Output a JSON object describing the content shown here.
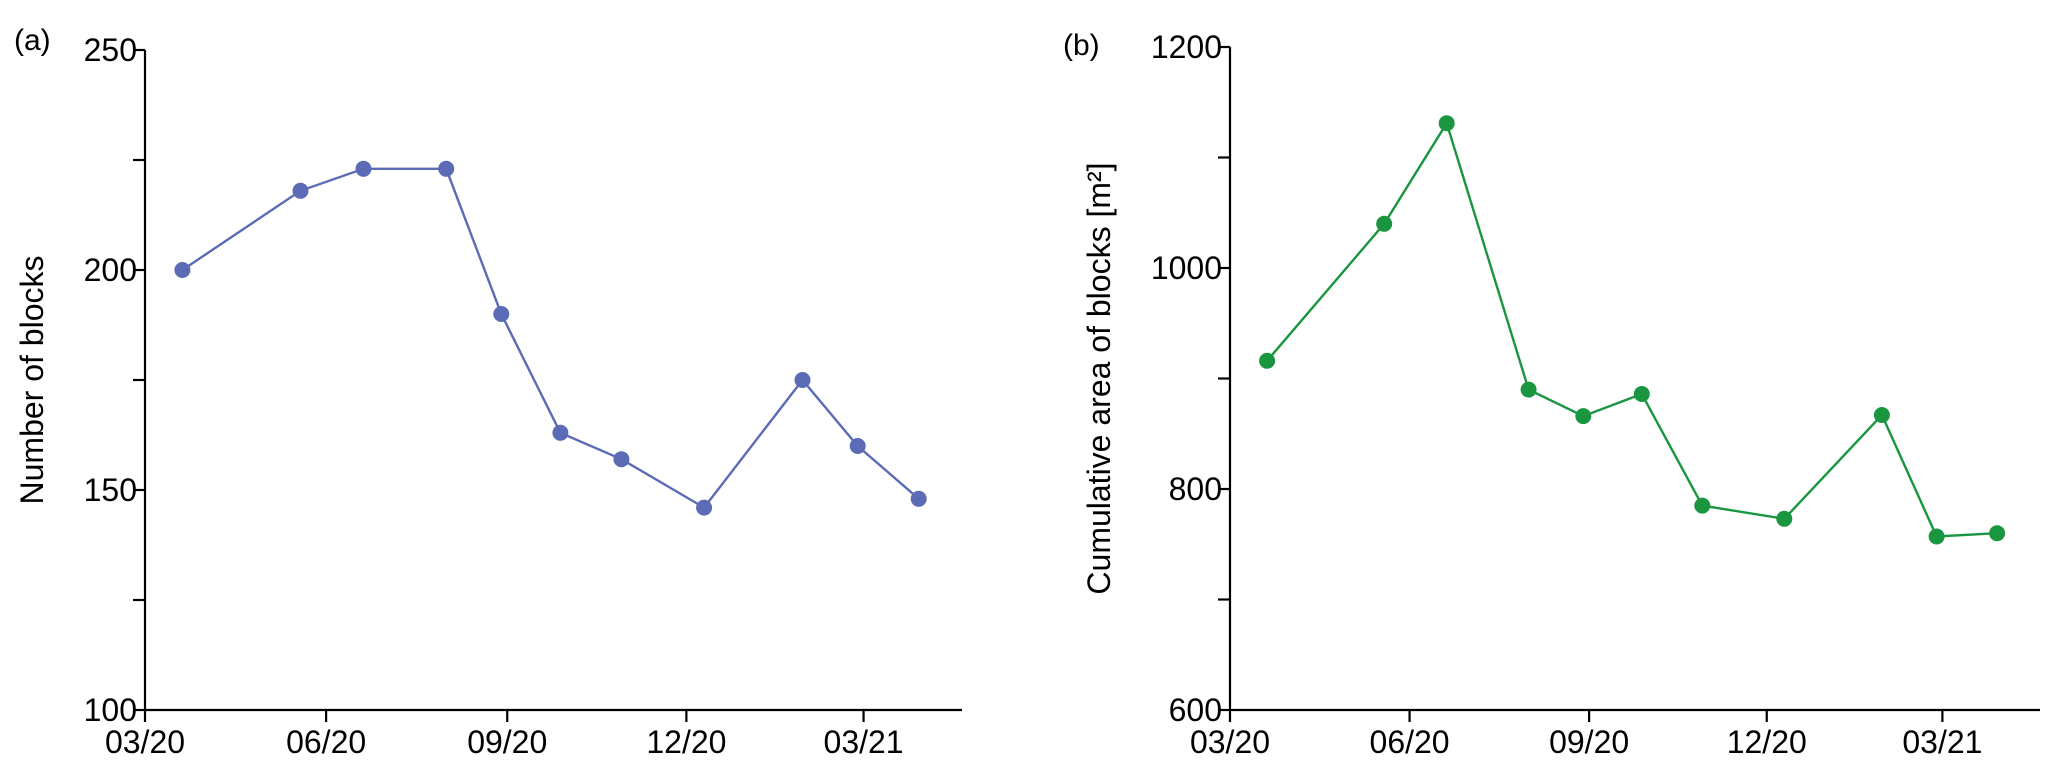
{
  "figure": {
    "panels": [
      {
        "label": "(a)"
      },
      {
        "label": "(b)"
      }
    ]
  },
  "chart_data": [
    {
      "type": "line",
      "panel": "(a)",
      "title": "",
      "xlabel": "",
      "ylabel": "Number of blocks",
      "xlim": [
        "2020-03-01",
        "2021-04-20"
      ],
      "ylim": [
        100,
        250
      ],
      "x_ticks": [
        "2020-03-01",
        "2020-06-01",
        "2020-09-01",
        "2020-12-01",
        "2021-03-01"
      ],
      "x_tick_labels": [
        "03/20",
        "06/20",
        "09/20",
        "12/20",
        "03/21"
      ],
      "y_ticks": [
        100,
        125,
        150,
        175,
        200,
        225,
        250
      ],
      "y_tick_labels": [
        "100",
        "",
        "150",
        "",
        "200",
        "",
        "250"
      ],
      "grid": false,
      "color": "#5b6bb5",
      "series": [
        {
          "x": [
            "2020-03-20",
            "2020-05-19",
            "2020-06-20",
            "2020-08-01",
            "2020-08-29",
            "2020-09-28",
            "2020-10-29",
            "2020-12-10",
            "2021-01-29",
            "2021-02-26",
            "2021-03-29"
          ],
          "y": [
            200,
            218,
            223,
            223,
            190,
            163,
            157,
            146,
            175,
            160,
            148
          ]
        }
      ]
    },
    {
      "type": "line",
      "panel": "(b)",
      "title": "",
      "xlabel": "",
      "ylabel": "Cumulative area of blocks [m²]",
      "xlim": [
        "2020-03-01",
        "2021-04-20"
      ],
      "ylim": [
        600,
        1200
      ],
      "x_ticks": [
        "2020-03-01",
        "2020-06-01",
        "2020-09-01",
        "2020-12-01",
        "2021-03-01"
      ],
      "x_tick_labels": [
        "03/20",
        "06/20",
        "09/20",
        "12/20",
        "03/21"
      ],
      "y_ticks": [
        600,
        700,
        800,
        900,
        1000,
        1100,
        1200
      ],
      "y_tick_labels": [
        "600",
        "",
        "800",
        "",
        "1000",
        "",
        "1200"
      ],
      "grid": false,
      "color": "#1a9641",
      "series": [
        {
          "x": [
            "2020-03-20",
            "2020-05-19",
            "2020-06-20",
            "2020-08-01",
            "2020-08-29",
            "2020-09-28",
            "2020-10-29",
            "2020-12-10",
            "2021-01-29",
            "2021-02-26",
            "2021-03-29"
          ],
          "y": [
            916,
            1040,
            1131,
            890,
            866,
            886,
            785,
            773,
            867,
            757,
            760
          ]
        }
      ]
    }
  ]
}
